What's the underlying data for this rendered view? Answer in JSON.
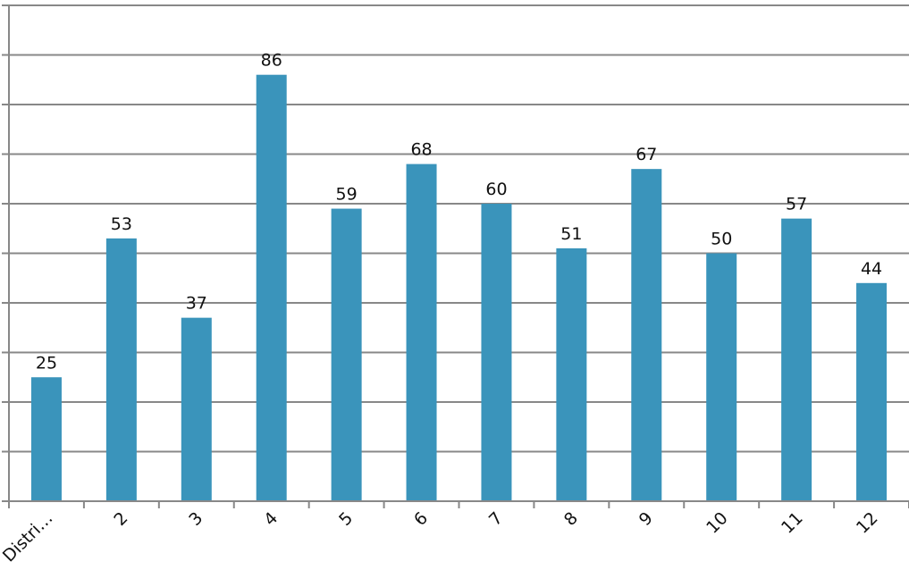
{
  "chart_data": {
    "type": "bar",
    "categories": [
      "Distri…",
      "2",
      "3",
      "4",
      "5",
      "6",
      "7",
      "8",
      "9",
      "10",
      "11",
      "12"
    ],
    "values": [
      25,
      53,
      37,
      86,
      59,
      68,
      60,
      51,
      67,
      50,
      57,
      44
    ],
    "data_labels": [
      "25",
      "53",
      "37",
      "86",
      "59",
      "68",
      "60",
      "51",
      "67",
      "50",
      "57",
      "44"
    ],
    "title": "",
    "xlabel": "",
    "ylabel": "",
    "ylim": [
      0,
      100
    ],
    "grid": true,
    "bar_color": "#3a94bb",
    "grid_color": "#888888"
  }
}
